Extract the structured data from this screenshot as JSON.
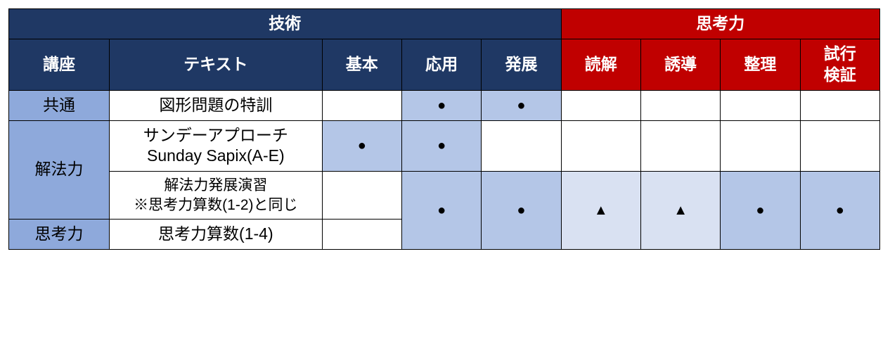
{
  "headers": {
    "group_tech": "技術",
    "group_think": "思考力",
    "kouza": "講座",
    "text": "テキスト",
    "kihon": "基本",
    "ouyou": "応用",
    "hatten": "発展",
    "dokkai": "読解",
    "yuudou": "誘導",
    "seiri": "整理",
    "shikou_kenshou": "試行\n検証"
  },
  "rows": {
    "r1": {
      "kouza": "共通",
      "text": "図形問題の特訓",
      "cells": [
        "",
        "●",
        "●",
        "",
        "",
        "",
        ""
      ]
    },
    "r2": {
      "kouza": "解法力",
      "text": "サンデーアプローチ\nSunday Sapix(A-E)",
      "cells": [
        "●",
        "●",
        "",
        "",
        "",
        "",
        ""
      ]
    },
    "r3": {
      "text": "解法力発展演習\n※思考力算数(1-2)と同じ",
      "merged_cells": [
        "●",
        "●",
        "▲",
        "▲",
        "●",
        "●"
      ]
    },
    "r4": {
      "kouza": "思考力",
      "text": "思考力算数(1-4)"
    }
  },
  "styling": {
    "navy": "#1f3864",
    "red": "#c00000",
    "side_blue": "#8ea9db",
    "cell_med": "#b4c6e7",
    "cell_light": "#d9e1f2",
    "white": "#ffffff",
    "border": "#000000",
    "mark_circle": "●",
    "mark_triangle": "▲"
  }
}
